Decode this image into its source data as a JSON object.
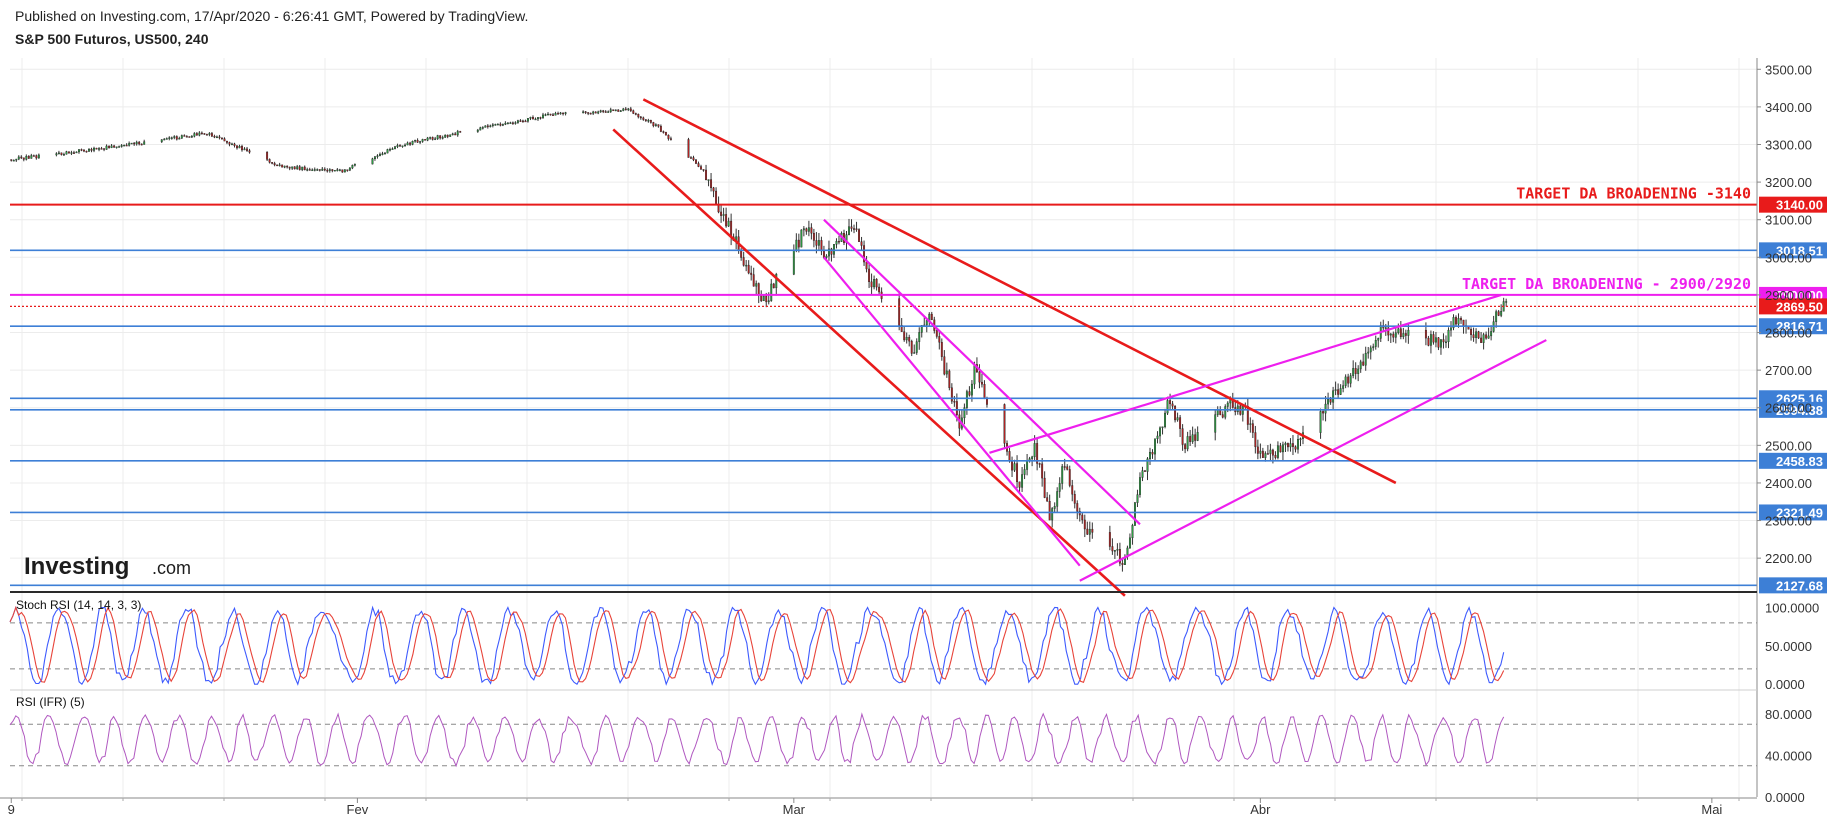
{
  "header": {
    "published": "Published on Investing.com, 17/Apr/2020 - 6:26:41 GMT, Powered by TradingView.",
    "symbol": "S&P 500 Futuros, US500, 240"
  },
  "logo": {
    "main": "Investing",
    "suffix": ".com"
  },
  "colors": {
    "up": "#2e9e44",
    "down": "#b22222",
    "red_line": "#e81b1b",
    "magenta_line": "#ee1fee",
    "blue_line": "#3d7fd6",
    "stoch_k": "#3d5afe",
    "stoch_d": "#e8443a",
    "rsi": "#b058c0"
  },
  "chart_data": [
    {
      "type": "candlestick",
      "title": "S&P 500 Futuros, US500, 240",
      "x_ticks": [
        "9",
        "Fev",
        "Mar",
        "Abr",
        "Mai"
      ],
      "y_ticks": [
        "2200.00",
        "2300.00",
        "2400.00",
        "2500.00",
        "2600.00",
        "2700.00",
        "2800.00",
        "2900.00",
        "3000.00",
        "3100.00",
        "3200.00",
        "3300.00",
        "3400.00",
        "3500.00"
      ],
      "ylim": [
        2110,
        3530
      ],
      "path": [
        [
          "2020-01-09",
          3260
        ],
        [
          "2020-01-17",
          3300
        ],
        [
          "2020-01-22",
          3330
        ],
        [
          "2020-01-27",
          3240
        ],
        [
          "2020-01-31",
          3230
        ],
        [
          "2020-02-04",
          3300
        ],
        [
          "2020-02-10",
          3350
        ],
        [
          "2020-02-14",
          3380
        ],
        [
          "2020-02-19",
          3392
        ],
        [
          "2020-02-21",
          3345
        ],
        [
          "2020-02-24",
          3230
        ],
        [
          "2020-02-25",
          3135
        ],
        [
          "2020-02-28",
          2880
        ],
        [
          "2020-03-02",
          3090
        ],
        [
          "2020-03-03",
          3000
        ],
        [
          "2020-03-05",
          3080
        ],
        [
          "2020-03-06",
          2950
        ],
        [
          "2020-03-09",
          2750
        ],
        [
          "2020-03-10",
          2860
        ],
        [
          "2020-03-12",
          2550
        ],
        [
          "2020-03-13",
          2700
        ],
        [
          "2020-03-16",
          2400
        ],
        [
          "2020-03-17",
          2500
        ],
        [
          "2020-03-18",
          2300
        ],
        [
          "2020-03-19",
          2450
        ],
        [
          "2020-03-20",
          2300
        ],
        [
          "2020-03-23",
          2190
        ],
        [
          "2020-03-24",
          2400
        ],
        [
          "2020-03-26",
          2620
        ],
        [
          "2020-03-27",
          2500
        ],
        [
          "2020-03-30",
          2610
        ],
        [
          "2020-03-31",
          2590
        ],
        [
          "2020-04-01",
          2470
        ],
        [
          "2020-04-03",
          2490
        ],
        [
          "2020-04-06",
          2640
        ],
        [
          "2020-04-08",
          2740
        ],
        [
          "2020-04-09",
          2810
        ],
        [
          "2020-04-13",
          2770
        ],
        [
          "2020-04-14",
          2840
        ],
        [
          "2020-04-15",
          2780
        ],
        [
          "2020-04-16",
          2790
        ],
        [
          "2020-04-17",
          2875
        ]
      ],
      "levels": [
        {
          "value": 3140.0,
          "label": "3140.00",
          "color": "#e81b1b",
          "style": "solid"
        },
        {
          "value": 3018.51,
          "label": "3018.51",
          "color": "#3d7fd6",
          "style": "solid"
        },
        {
          "value": 2900.0,
          "label": "2900.00",
          "color": "#ee1fee",
          "style": "solid"
        },
        {
          "value": 2869.5,
          "label": "2869.50",
          "color": "#e81b1b",
          "style": "dotted"
        },
        {
          "value": 2816.71,
          "label": "2816.71",
          "color": "#3d7fd6",
          "style": "solid"
        },
        {
          "value": 2625.16,
          "label": "2625.16",
          "color": "#3d7fd6",
          "style": "solid"
        },
        {
          "value": 2594.38,
          "label": "2594.38",
          "color": "#3d7fd6",
          "style": "solid"
        },
        {
          "value": 2458.83,
          "label": "2458.83",
          "color": "#3d7fd6",
          "style": "solid"
        },
        {
          "value": 2321.49,
          "label": "2321.49",
          "color": "#3d7fd6",
          "style": "solid"
        },
        {
          "value": 2127.68,
          "label": "2127.68",
          "color": "#3d7fd6",
          "style": "solid"
        }
      ],
      "annotations": [
        {
          "text": "TARGET DA BROADENING -3140",
          "color": "#e81b1b",
          "y": 3140
        },
        {
          "text": "TARGET DA BROADENING - 2900/2920",
          "color": "#ee1fee",
          "y": 2900
        }
      ],
      "trendlines": [
        {
          "color": "#e81b1b",
          "from": [
            "2020-02-18",
            3340
          ],
          "to": [
            "2020-03-23",
            2100
          ]
        },
        {
          "color": "#e81b1b",
          "from": [
            "2020-02-20",
            3420
          ],
          "to": [
            "2020-04-10",
            2400
          ]
        },
        {
          "color": "#ee1fee",
          "from": [
            "2020-03-03",
            3000
          ],
          "to": [
            "2020-03-20",
            2180
          ]
        },
        {
          "color": "#ee1fee",
          "from": [
            "2020-03-03",
            3100
          ],
          "to": [
            "2020-03-24",
            2290
          ]
        },
        {
          "color": "#ee1fee",
          "from": [
            "2020-03-14",
            2480
          ],
          "to": [
            "2020-04-17",
            2900
          ]
        },
        {
          "color": "#ee1fee",
          "from": [
            "2020-03-20",
            2140
          ],
          "to": [
            "2020-04-20",
            2780
          ]
        }
      ]
    },
    {
      "type": "line",
      "label": "Stoch RSI (14, 14, 3, 3)",
      "y_ticks": [
        "100.0000",
        "50.0000",
        "0.0000"
      ],
      "ylim": [
        -5,
        115
      ],
      "reference_lines": [
        80,
        20
      ]
    },
    {
      "type": "line",
      "label": "RSI (IFR) (5)",
      "y_ticks": [
        "80.0000",
        "40.0000",
        "0.0000"
      ],
      "ylim": [
        0,
        100
      ],
      "reference_lines": [
        70,
        30
      ]
    }
  ]
}
